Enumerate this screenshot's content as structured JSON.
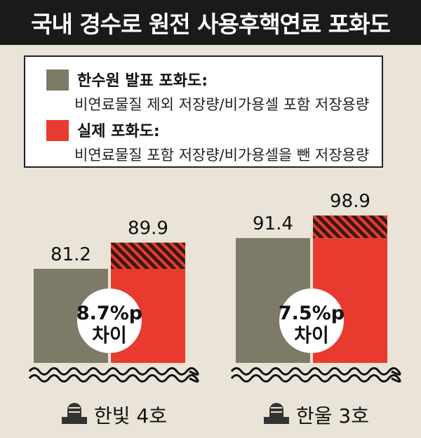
{
  "title": "국내 경수로 원전 사용후핵연료 포화도",
  "legend": [
    {
      "title": "한수원 발표 포화도:",
      "desc": "비연료물질 제외 저장량/비가용셀 포함 저장용량",
      "color": "#7d7a68"
    },
    {
      "title": "실제 포화도:",
      "desc": "비연료물질 포함 저장량/비가용셀을 뺀 저장용량",
      "color": "#e83a2e"
    }
  ],
  "chart_data": {
    "type": "bar",
    "categories": [
      "한빛 4호",
      "한울 3호"
    ],
    "series": [
      {
        "name": "한수원 발표 포화도",
        "values": [
          81.2,
          91.4
        ],
        "color": "#7d7a68"
      },
      {
        "name": "실제 포화도",
        "values": [
          89.9,
          98.9
        ],
        "color": "#e83a2e"
      }
    ],
    "differences": [
      {
        "line1": "8.7%p",
        "line2": "차이"
      },
      {
        "line1": "7.5%p",
        "line2": "차이"
      }
    ],
    "ylim": [
      0,
      100
    ],
    "grid": false
  }
}
